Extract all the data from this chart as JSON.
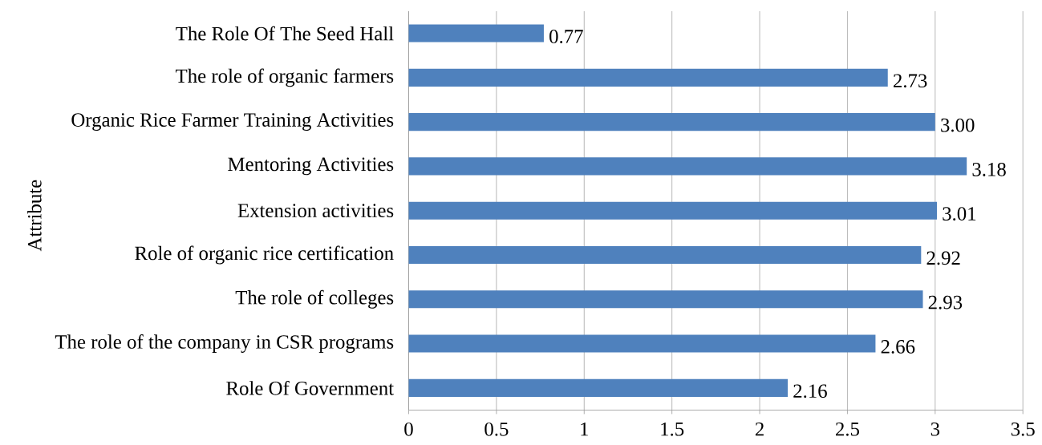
{
  "chart_data": {
    "type": "bar",
    "orientation": "horizontal",
    "ylabel": "Attribute",
    "categories": [
      "The Role Of The Seed Hall",
      "The role of organic farmers",
      "Organic Rice Farmer Training Activities",
      "Mentoring Activities",
      "Extension activities",
      "Role of organic rice certification",
      "The role of colleges",
      "The role of the company in CSR programs",
      "Role Of Government"
    ],
    "values": [
      0.77,
      2.73,
      3.0,
      3.18,
      3.01,
      2.92,
      2.93,
      2.66,
      2.16
    ],
    "value_labels": [
      "0.77",
      "2.73",
      "3.00",
      "3.18",
      "3.01",
      "2.92",
      "2.93",
      "2.66",
      "2.16"
    ],
    "color": "#4f81bd",
    "xlim": [
      0,
      3.5
    ],
    "xticks": [
      0,
      0.5,
      1,
      1.5,
      2,
      2.5,
      3,
      3.5
    ],
    "grid": "x"
  }
}
